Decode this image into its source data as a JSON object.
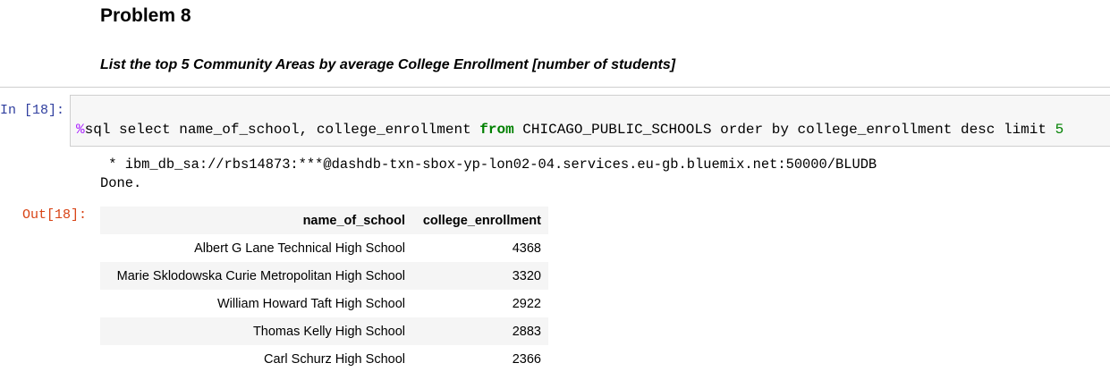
{
  "markdown": {
    "title": "Problem 8",
    "subtitle": "List the top 5 Community Areas by average College Enrollment [number of students]"
  },
  "code_cell": {
    "prompt": "In [18]:",
    "magic": "%",
    "code_part1": "sql select name_of_school, college_enrollment ",
    "keyword_from": "from",
    "code_part2": " CHICAGO_PUBLIC_SCHOOLS order by college_enrollment desc limit ",
    "limit_value": "5"
  },
  "output": {
    "stream_line1": " * ibm_db_sa://rbs14873:***@dashdb-txn-sbox-yp-lon02-04.services.eu-gb.bluemix.net:50000/BLUDB",
    "stream_line2": "Done.",
    "prompt": "Out[18]:",
    "table": {
      "columns": [
        "name_of_school",
        "college_enrollment"
      ],
      "rows": [
        [
          "Albert G Lane Technical High School",
          "4368"
        ],
        [
          "Marie Sklodowska Curie Metropolitan High School",
          "3320"
        ],
        [
          "William Howard Taft High School",
          "2922"
        ],
        [
          "Thomas Kelly High School",
          "2883"
        ],
        [
          "Carl Schurz High School",
          "2366"
        ]
      ]
    }
  },
  "colors": {
    "in_prompt": "#303f9f",
    "out_prompt": "#d84315",
    "magic": "#aa22ff",
    "keyword": "#008000",
    "cell_bg": "#f7f7f7"
  }
}
